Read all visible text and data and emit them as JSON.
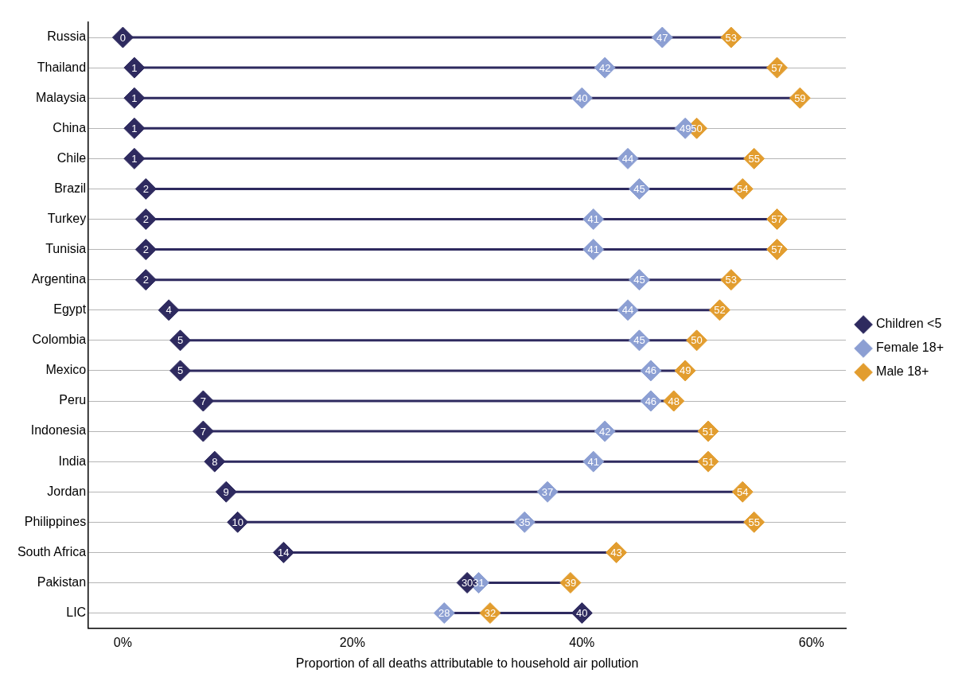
{
  "chart_data": {
    "type": "scatter",
    "orientation": "horizontal",
    "xlabel": "Proportion of all deaths attributable to household air pollution",
    "categories": [
      "Russia",
      "Thailand",
      "Malaysia",
      "China",
      "Chile",
      "Brazil",
      "Turkey",
      "Tunisia",
      "Argentina",
      "Egypt",
      "Colombia",
      "Mexico",
      "Peru",
      "Indonesia",
      "India",
      "Jordan",
      "Philippines",
      "South Africa",
      "Pakistan",
      "LIC"
    ],
    "series": [
      {
        "name": "Children <5",
        "color": "#2e2a5f",
        "values": [
          0,
          1,
          1,
          1,
          1,
          2,
          2,
          2,
          2,
          4,
          5,
          5,
          7,
          7,
          8,
          9,
          10,
          14,
          30,
          40
        ]
      },
      {
        "name": "Female 18+",
        "color": "#8c9fd3",
        "values": [
          47,
          42,
          40,
          49,
          44,
          45,
          41,
          41,
          45,
          44,
          45,
          46,
          46,
          42,
          41,
          37,
          35,
          null,
          31,
          28
        ]
      },
      {
        "name": "Male 18+",
        "color": "#e29d2f",
        "values": [
          53,
          57,
          59,
          50,
          55,
          54,
          57,
          57,
          53,
          52,
          50,
          49,
          48,
          51,
          51,
          54,
          55,
          43,
          39,
          32
        ]
      }
    ],
    "xlim": [
      -3,
      63
    ],
    "xticks": [
      {
        "value": 0,
        "label": "0%"
      },
      {
        "value": 20,
        "label": "20%"
      },
      {
        "value": 40,
        "label": "40%"
      },
      {
        "value": 60,
        "label": "60%"
      }
    ],
    "grid": "y",
    "legend": "right",
    "marker": "diamond",
    "data_labels": true
  }
}
